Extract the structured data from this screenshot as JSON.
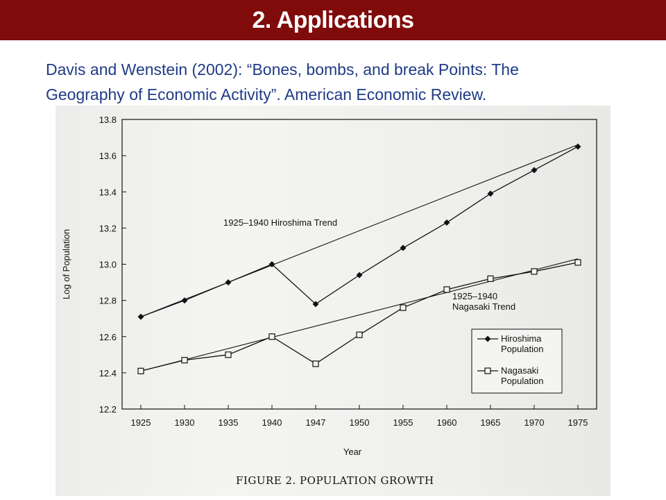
{
  "header": {
    "title": "2. Applications"
  },
  "citation": {
    "line1": "Davis and Wenstein (2002): “Bones, bombs, and break Points: The",
    "line2": "Geography of Economic Activity”.  American Economic Review."
  },
  "colors": {
    "title_bar": "#7f0b0b",
    "citation_text": "#1f3b86",
    "chart_ink": "#111111"
  },
  "chart_data": {
    "type": "line",
    "title": "FIGURE 2. POPULATION GROWTH",
    "xlabel": "Year",
    "ylabel": "Log of Population",
    "categories": [
      "1925",
      "1930",
      "1935",
      "1940",
      "1947",
      "1950",
      "1955",
      "1960",
      "1965",
      "1970",
      "1975"
    ],
    "ylim": [
      12.2,
      13.8
    ],
    "yticks": [
      "12.2",
      "12.4",
      "12.6",
      "12.8",
      "13.0",
      "13.2",
      "13.4",
      "13.6",
      "13.8"
    ],
    "grid": false,
    "legend_position": "bottom-right",
    "series": [
      {
        "name": "Hiroshima Population",
        "marker": "diamond-filled",
        "values": [
          12.71,
          12.8,
          12.9,
          13.0,
          12.78,
          12.94,
          13.09,
          13.23,
          13.39,
          13.52,
          13.65
        ]
      },
      {
        "name": "Nagasaki Population",
        "marker": "square-open",
        "values": [
          12.41,
          12.47,
          12.5,
          12.6,
          12.45,
          12.61,
          12.76,
          12.86,
          12.92,
          12.96,
          13.01
        ]
      }
    ],
    "trend_lines": [
      {
        "label": "1925–1940 Hiroshima Trend",
        "values": [
          12.71,
          13.66
        ]
      },
      {
        "label_lines": [
          "1925–1940",
          "Nagasaki Trend"
        ],
        "values": [
          12.41,
          13.03
        ]
      }
    ],
    "legend": [
      {
        "label_lines": [
          "Hiroshima",
          "Population"
        ]
      },
      {
        "label_lines": [
          "Nagasaki",
          "Population"
        ]
      }
    ]
  }
}
